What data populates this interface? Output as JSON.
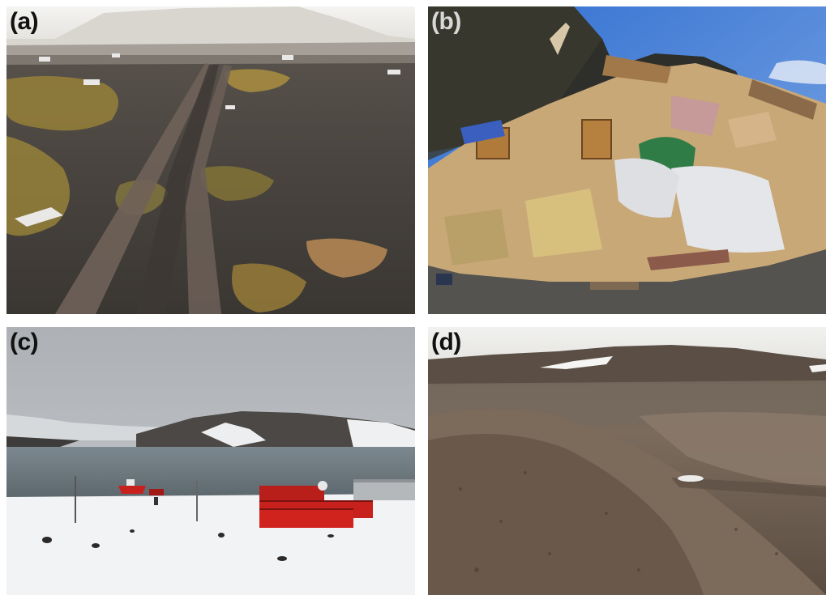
{
  "panels": [
    {
      "id": "a",
      "label": "(a)",
      "label_color": "#111111"
    },
    {
      "id": "b",
      "label": "(b)",
      "label_color": "#d8d8d8"
    },
    {
      "id": "c",
      "label": "(c)",
      "label_color": "#111111"
    },
    {
      "id": "d",
      "label": "(d)",
      "label_color": "#111111"
    }
  ],
  "colors": {
    "background": "#ffffff",
    "tundra_ground": "#4a4540",
    "moss": "#a08a3a",
    "sky_blue": "#3f7fd4",
    "debris_wood": "#c9a878",
    "station_red": "#c8201c",
    "snow": "#f2f3f5",
    "sea": "#6d7a80",
    "gravel_brown": "#6e5e50"
  }
}
